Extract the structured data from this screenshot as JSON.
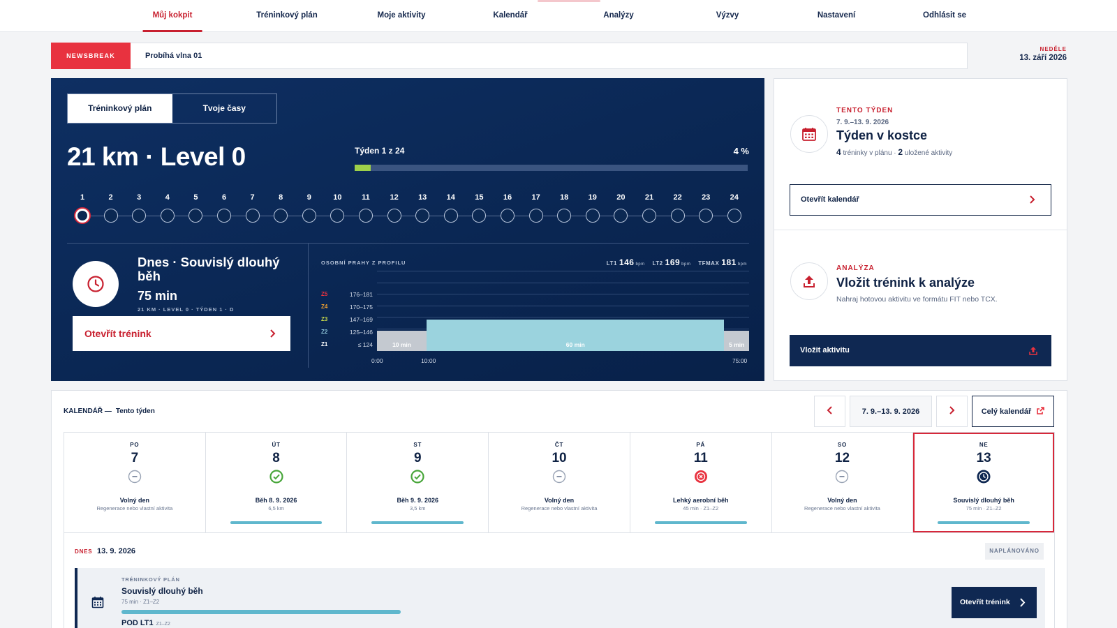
{
  "nav": {
    "items": [
      "Můj kokpit",
      "Tréninkový plán",
      "Moje aktivity",
      "Kalendář",
      "Analýzy",
      "Výzvy",
      "Nastavení",
      "Odhlásit se"
    ],
    "active_index": 0
  },
  "newsbreak": {
    "tag": "NEWSBREAK",
    "text": "Probíhá vlna 01"
  },
  "date": {
    "weekday": "NEDĚLE",
    "date": "13. září 2026"
  },
  "hero": {
    "tabs": [
      "Tréninkový plán",
      "Tvoje časy"
    ],
    "active_tab": 0,
    "title": "21 km · Level 0",
    "week_label": "Týden 1 z 24",
    "progress_pct": 4,
    "progress_text": "4 %",
    "weeks": [
      "1",
      "2",
      "3",
      "4",
      "5",
      "6",
      "7",
      "8",
      "9",
      "10",
      "11",
      "12",
      "13",
      "14",
      "15",
      "16",
      "17",
      "18",
      "19",
      "20",
      "21",
      "22",
      "23",
      "24"
    ],
    "current_week": 1,
    "today_title": "Dnes · Souvislý dlouhý běh",
    "today_duration": "75 min",
    "today_meta": "21 KM · LEVEL 0 · TÝDEN 1 · D",
    "open_button": "Otevřít trénink",
    "zones": {
      "title": "OSOBNÍ PRAHY Z PROFILU",
      "lt1_label": "LT1",
      "lt1": "146",
      "lt2_label": "LT2",
      "lt2": "169",
      "tfmax_label": "TFMAX",
      "tfmax": "181",
      "unit": "bpm",
      "rows": [
        {
          "zone": "Z5",
          "range": "176–181",
          "color": "#e8323f"
        },
        {
          "zone": "Z4",
          "range": "170–175",
          "color": "#f0a030"
        },
        {
          "zone": "Z3",
          "range": "147–169",
          "color": "#c9d94a"
        },
        {
          "zone": "Z2",
          "range": "125–146",
          "color": "#8fc6d8"
        },
        {
          "zone": "Z1",
          "range": "≤ 124",
          "color": "#ffffff"
        }
      ],
      "blocks": [
        {
          "label": "10 min",
          "start": 0,
          "minutes": 10,
          "zone": "Z1"
        },
        {
          "label": "60 min",
          "start": 10,
          "minutes": 60,
          "zone": "Z2"
        },
        {
          "label": "5 min",
          "start": 70,
          "minutes": 5,
          "zone": "Z1"
        }
      ],
      "total_minutes": 75,
      "times": [
        "0:00",
        "10:00",
        "75:00"
      ]
    }
  },
  "week_card": {
    "kicker": "TENTO TÝDEN",
    "range": "7. 9.–13. 9. 2026",
    "title": "Týden v kostce",
    "planned_count": "4",
    "planned_text": "tréninky v plánu ·",
    "saved_count": "2",
    "saved_text": "uložené aktivity",
    "button": "Otevřít kalendář"
  },
  "analysis_card": {
    "kicker": "ANALÝZA",
    "title": "Vložit trénink k analýze",
    "desc": "Nahraj hotovou aktivitu ve formátu FIT nebo TCX.",
    "button": "Vložit aktivitu"
  },
  "calendar": {
    "label": "KALENDÁŘ —",
    "sublabel": "Tento týden",
    "range": "7. 9.–13. 9. 2026",
    "full_button": "Celý kalendář",
    "days": [
      {
        "dow": "PO",
        "num": "7",
        "status": "rest",
        "title": "Volný den",
        "sub": "Regenerace nebo vlastní aktivita",
        "bar": false
      },
      {
        "dow": "ÚT",
        "num": "8",
        "status": "done",
        "title": "Běh 8. 9. 2026",
        "sub": "6,5 km",
        "bar": true
      },
      {
        "dow": "ST",
        "num": "9",
        "status": "done",
        "title": "Běh 9. 9. 2026",
        "sub": "3,5 km",
        "bar": true
      },
      {
        "dow": "ČT",
        "num": "10",
        "status": "rest",
        "title": "Volný den",
        "sub": "Regenerace nebo vlastní aktivita",
        "bar": false
      },
      {
        "dow": "PÁ",
        "num": "11",
        "status": "missed",
        "title": "Lehký aerobní běh",
        "sub": "45 min · Z1–Z2",
        "bar": true
      },
      {
        "dow": "SO",
        "num": "12",
        "status": "rest",
        "title": "Volný den",
        "sub": "Regenerace nebo vlastní aktivita",
        "bar": false
      },
      {
        "dow": "NE",
        "num": "13",
        "status": "today",
        "title": "Souvislý dlouhý běh",
        "sub": "75 min · Z1–Z2",
        "bar": true
      }
    ],
    "today": {
      "label": "DNES",
      "date": "13. 9. 2026",
      "badge": "NAPLÁNOVÁNO",
      "kicker": "TRÉNINKOVÝ PLÁN",
      "title": "Souvislý dlouhý běh",
      "sub": "75 min · Z1–Z2",
      "foot": "POD LT1",
      "foot_small": "Z1–Z2",
      "button": "Otevřít trénink"
    }
  }
}
